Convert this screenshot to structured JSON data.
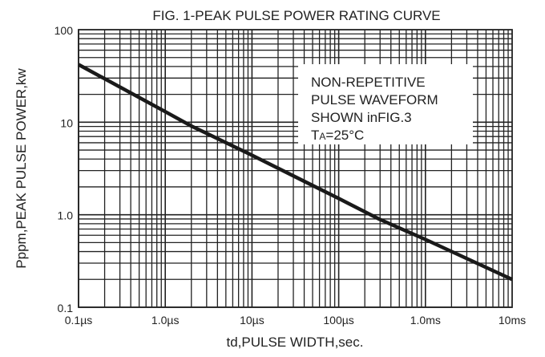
{
  "chart_data": {
    "type": "line",
    "title": "FIG. 1-PEAK PULSE POWER RATING CURVE",
    "xlabel": "td,PULSE WIDTH,sec.",
    "ylabel": "Pppm,PEAK PULSE POWER,kw",
    "x_scale": "log",
    "y_scale": "log",
    "x_unit": "µs",
    "xlim": [
      0.1,
      10000
    ],
    "ylim": [
      0.1,
      100
    ],
    "x_ticks": [
      {
        "value": 0.1,
        "label": "0.1µs"
      },
      {
        "value": 1,
        "label": "1.0µs"
      },
      {
        "value": 10,
        "label": "10µs"
      },
      {
        "value": 100,
        "label": "100µs"
      },
      {
        "value": 1000,
        "label": "1.0ms"
      },
      {
        "value": 10000,
        "label": "10ms"
      }
    ],
    "y_ticks": [
      {
        "value": 100,
        "label": "100"
      },
      {
        "value": 10,
        "label": "10"
      },
      {
        "value": 1,
        "label": "1.0"
      },
      {
        "value": 0.1,
        "label": "0.1"
      }
    ],
    "grid": true,
    "series": [
      {
        "name": "Peak pulse power",
        "x": [
          0.1,
          1,
          2,
          10,
          100,
          290,
          1000,
          10000
        ],
        "y": [
          42,
          13,
          9.1,
          4.4,
          1.5,
          0.9,
          0.54,
          0.2
        ]
      }
    ],
    "annotation": {
      "lines": [
        "NON-REPETITIVE",
        "PULSE WAVEFORM",
        "SHOWN inFIG.3"
      ],
      "temp_prefix": "T",
      "temp_sub": "A",
      "temp_value": "=25°C"
    }
  }
}
